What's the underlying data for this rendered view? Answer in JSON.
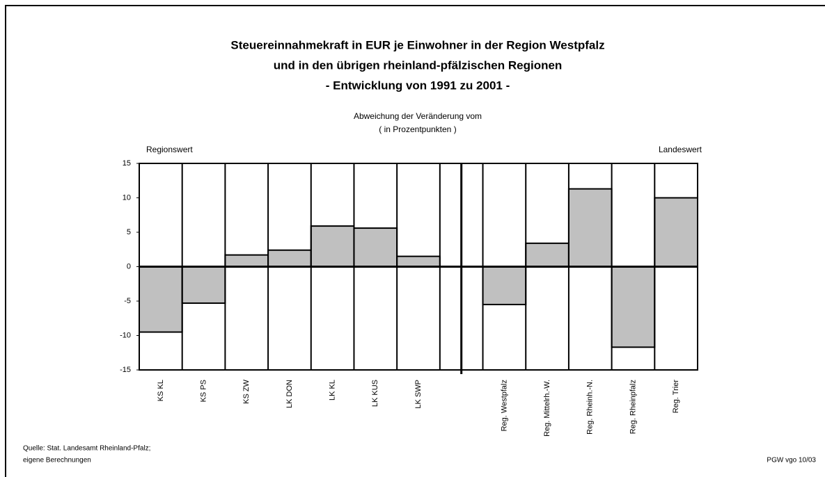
{
  "chart_data": {
    "type": "bar",
    "title": [
      "Steuereinnahmekraft in EUR je Einwohner in der Region Westpfalz",
      "und in den übrigen rheinland-pfälzischen Regionen",
      "- Entwicklung von 1991 zu 2001 -"
    ],
    "subtitle": [
      "Abweichung der Veränderung vom",
      "( in Prozentpunkten )"
    ],
    "left_label": "Regionswert",
    "right_label": "Landeswert",
    "source": [
      "Quelle: Stat. Landesamt Rheinland-Pfalz;",
      "eigene Berechnungen"
    ],
    "credit": "PGW vgo 10/03",
    "categories": [
      "KS KL",
      "KS PS",
      "KS ZW",
      "LK DON",
      "LK KL",
      "LK KUS",
      "LK SWP",
      null,
      "Reg. Westpfalz",
      "Reg. Mittelrh.-W.",
      "Reg. Rheinh.-N.",
      "Reg. Rheinpfalz",
      "Reg. Trier"
    ],
    "values": [
      -9.5,
      -5.3,
      1.7,
      2.4,
      5.9,
      5.6,
      1.5,
      null,
      -5.5,
      3.4,
      11.3,
      -11.7,
      10.0
    ],
    "color": "#c0c0c0",
    "ylim": [
      -15,
      15
    ],
    "yticks": [
      15,
      10,
      5,
      0,
      -5,
      -10,
      -15
    ]
  }
}
